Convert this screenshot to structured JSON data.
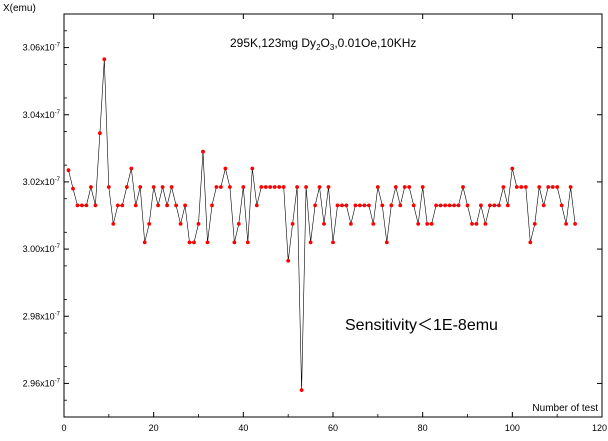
{
  "chart_data": {
    "type": "line",
    "title": "295K,123mg Dy2O3,0.01Oe,10KHz",
    "title_parts": {
      "lead": "295K,123mg Dy",
      "sub1": "2",
      "mid": "O",
      "sub2": "3",
      "tail": ",0.01Oe,10KHz"
    },
    "annotation": "Sensitivity＜1E-8emu",
    "ylabel": "X(emu)",
    "xlabel": "Number of test",
    "xlim": [
      0,
      120
    ],
    "ylim": [
      2.95e-07,
      3.07e-07
    ],
    "x_ticks": [
      "0",
      "20",
      "40",
      "60",
      "80",
      "100",
      "120"
    ],
    "x_tick_values": [
      0,
      20,
      40,
      60,
      80,
      100,
      120
    ],
    "y_ticks": [
      {
        "value": 2.96e-07,
        "mantissa": "2.96x10",
        "exp": "-7"
      },
      {
        "value": 2.98e-07,
        "mantissa": "2.98x10",
        "exp": "-7"
      },
      {
        "value": 3e-07,
        "mantissa": "3.00x10",
        "exp": "-7"
      },
      {
        "value": 3.02e-07,
        "mantissa": "3.02x10",
        "exp": "-7"
      },
      {
        "value": 3.04e-07,
        "mantissa": "3.04x10",
        "exp": "-7"
      },
      {
        "value": 3.06e-07,
        "mantissa": "3.06x10",
        "exp": "-7"
      }
    ],
    "grid": false,
    "colors": {
      "marker": "#ff0000",
      "line": "#000000",
      "axis": "#000000"
    },
    "series": [
      {
        "x": [
          1,
          2,
          3,
          4,
          5,
          6,
          7,
          8,
          9,
          10,
          11,
          12,
          13,
          14,
          15,
          16,
          17,
          18,
          19,
          20,
          21,
          22,
          23,
          24,
          25,
          26,
          27,
          28,
          29,
          30,
          31,
          32,
          33,
          34,
          35,
          36,
          37,
          38,
          39,
          40,
          41,
          42,
          43,
          44,
          45,
          46,
          47,
          48,
          49,
          50,
          51,
          52,
          53,
          54,
          55,
          56,
          57,
          58,
          59,
          60,
          61,
          62,
          63,
          64,
          65,
          66,
          67,
          68,
          69,
          70,
          71,
          72,
          73,
          74,
          75,
          76,
          77,
          78,
          79,
          80,
          81,
          82,
          83,
          84,
          85,
          86,
          87,
          88,
          89,
          90,
          91,
          92,
          93,
          94,
          95,
          96,
          97,
          98,
          99,
          100,
          101,
          102,
          103,
          104,
          105,
          106,
          107,
          108,
          109,
          110,
          111,
          112,
          113,
          114
        ],
        "y": [
          3.0235e-07,
          3.018e-07,
          3.013e-07,
          3.013e-07,
          3.013e-07,
          3.0185e-07,
          3.013e-07,
          3.0345e-07,
          3.0565e-07,
          3.0185e-07,
          3.0075e-07,
          3.013e-07,
          3.013e-07,
          3.0185e-07,
          3.024e-07,
          3.013e-07,
          3.0185e-07,
          3.002e-07,
          3.0075e-07,
          3.0185e-07,
          3.013e-07,
          3.0185e-07,
          3.013e-07,
          3.0185e-07,
          3.013e-07,
          3.0075e-07,
          3.013e-07,
          3.002e-07,
          3.002e-07,
          3.0075e-07,
          3.029e-07,
          3.002e-07,
          3.013e-07,
          3.0185e-07,
          3.0185e-07,
          3.024e-07,
          3.0185e-07,
          3.002e-07,
          3.0075e-07,
          3.0185e-07,
          3.002e-07,
          3.024e-07,
          3.013e-07,
          3.0185e-07,
          3.0185e-07,
          3.0185e-07,
          3.0185e-07,
          3.0185e-07,
          3.0185e-07,
          2.9965e-07,
          3.0075e-07,
          3.0185e-07,
          2.958e-07,
          3.0185e-07,
          3.002e-07,
          3.013e-07,
          3.0185e-07,
          3.0075e-07,
          3.0185e-07,
          3.002e-07,
          3.013e-07,
          3.013e-07,
          3.013e-07,
          3.0075e-07,
          3.013e-07,
          3.013e-07,
          3.013e-07,
          3.013e-07,
          3.0075e-07,
          3.0185e-07,
          3.013e-07,
          3.002e-07,
          3.013e-07,
          3.0185e-07,
          3.013e-07,
          3.0185e-07,
          3.0185e-07,
          3.013e-07,
          3.0075e-07,
          3.0185e-07,
          3.0075e-07,
          3.0075e-07,
          3.013e-07,
          3.013e-07,
          3.013e-07,
          3.013e-07,
          3.013e-07,
          3.013e-07,
          3.0185e-07,
          3.013e-07,
          3.0075e-07,
          3.0075e-07,
          3.013e-07,
          3.0075e-07,
          3.013e-07,
          3.013e-07,
          3.013e-07,
          3.0185e-07,
          3.013e-07,
          3.024e-07,
          3.0185e-07,
          3.0185e-07,
          3.0185e-07,
          3.002e-07,
          3.0075e-07,
          3.0185e-07,
          3.013e-07,
          3.0185e-07,
          3.0185e-07,
          3.0185e-07,
          3.013e-07,
          3.0075e-07,
          3.0185e-07,
          3.0075e-07
        ]
      }
    ]
  }
}
